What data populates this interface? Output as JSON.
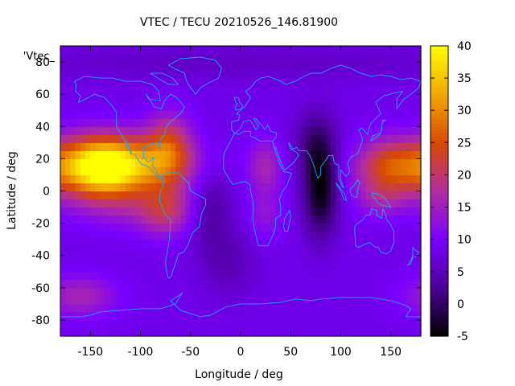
{
  "chart_data": {
    "type": "heatmap",
    "title": "VTEC / TECU 20210526_146.81900",
    "xlabel": "Longitude / deg",
    "ylabel": "Latitude / deg",
    "legend_text": "'Vtec_",
    "xlim": [
      -180,
      180
    ],
    "ylim": [
      -90,
      90
    ],
    "xticks": [
      -150,
      -100,
      -50,
      0,
      50,
      100,
      150
    ],
    "yticks": [
      -80,
      -60,
      -40,
      -20,
      0,
      20,
      40,
      60,
      80
    ],
    "colorbar": {
      "range": [
        -5,
        40
      ],
      "ticks": [
        -5,
        0,
        5,
        10,
        15,
        20,
        25,
        30,
        35,
        40
      ],
      "palette": [
        "#000000",
        "#4b0096",
        "#7a00ff",
        "#b22e9e",
        "#d94900",
        "#f2a600",
        "#ffff00"
      ]
    },
    "background_level": 8.5,
    "features": [
      {
        "region": "eastern Pacific crest",
        "lon": -140,
        "lat": 15,
        "value": 34,
        "lon_spread": 30,
        "lat_spread": 13
      },
      {
        "region": "central Pacific crest",
        "lon": -110,
        "lat": 16,
        "value": 24,
        "lon_spread": 45,
        "lat_spread": 12
      },
      {
        "region": "Americas northern crest",
        "lon": -72,
        "lat": 28,
        "value": 21,
        "lon_spread": 16,
        "lat_spread": 14
      },
      {
        "region": "Americas southern crest",
        "lon": -75,
        "lat": -12,
        "value": 18,
        "lon_spread": 18,
        "lat_spread": 11
      },
      {
        "region": "equatorial Pacific south",
        "lon": -110,
        "lat": -10,
        "value": 13,
        "lon_spread": 40,
        "lat_spread": 10
      },
      {
        "region": "Africa equatorial",
        "lon": 25,
        "lat": 15,
        "value": 16,
        "lon_spread": 12,
        "lat_spread": 12
      },
      {
        "region": "Africa southern",
        "lon": 25,
        "lat": -15,
        "value": 13,
        "lon_spread": 12,
        "lat_spread": 10
      },
      {
        "region": "Western Pacific crest",
        "lon": 150,
        "lat": 15,
        "value": 24,
        "lon_spread": 25,
        "lat_spread": 12
      },
      {
        "region": "Western Pacific south",
        "lon": 140,
        "lat": -5,
        "value": 14,
        "lon_spread": 18,
        "lat_spread": 8
      },
      {
        "region": "Southern Pacific high latitude",
        "lon": -160,
        "lat": -65,
        "value": 16,
        "lon_spread": 25,
        "lat_spread": 9
      },
      {
        "region": "Indian Ocean trough",
        "lon": 80,
        "lat": 0,
        "value": -4,
        "lon_spread": 12,
        "lat_spread": 20
      },
      {
        "region": "Central Asia trough",
        "lon": 75,
        "lat": 30,
        "value": 2,
        "lon_spread": 15,
        "lat_spread": 15
      },
      {
        "region": "South Atlantic trough",
        "lon": -30,
        "lat": -10,
        "value": 3,
        "lon_spread": 15,
        "lat_spread": 20
      },
      {
        "region": "Southern Ocean trough",
        "lon": -10,
        "lat": -45,
        "value": 5,
        "lon_spread": 20,
        "lat_spread": 15
      },
      {
        "region": "Arctic",
        "lon": 0,
        "lat": 80,
        "value": 6,
        "lon_spread": 200,
        "lat_spread": 8
      }
    ]
  }
}
